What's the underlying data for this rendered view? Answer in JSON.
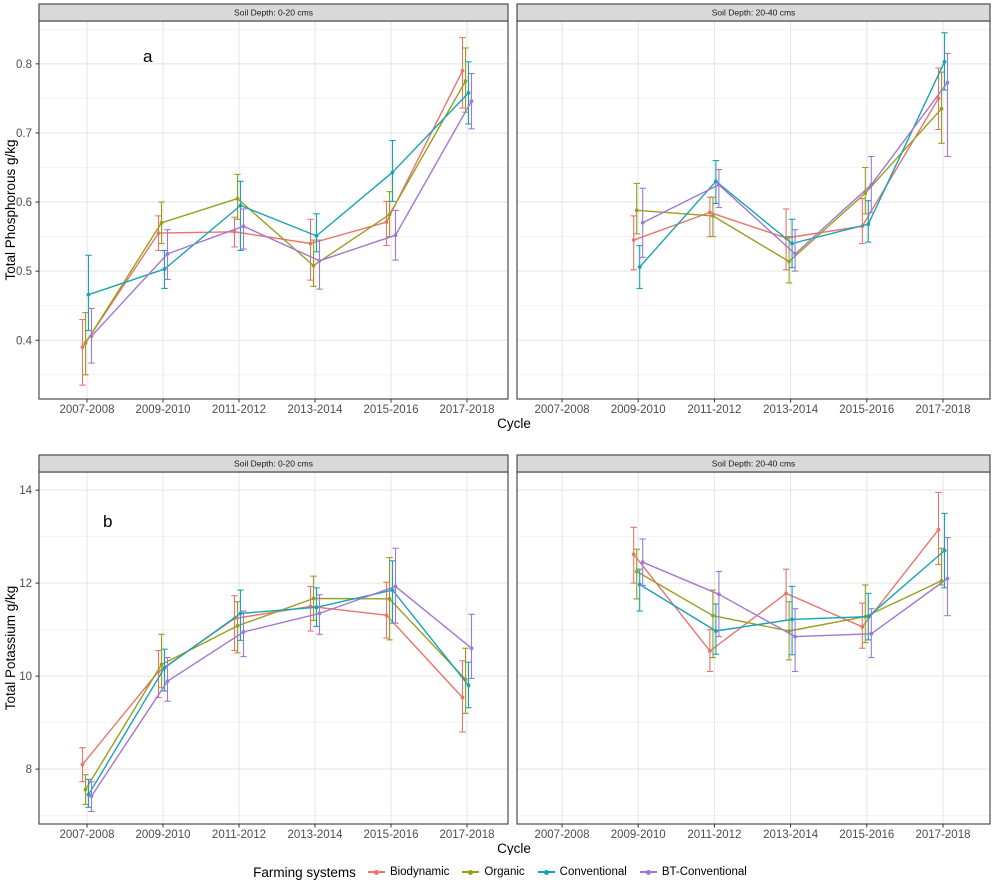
{
  "legend": {
    "title": "Farming systems",
    "items": [
      {
        "label": "Biodynamic",
        "color": "#E8746C"
      },
      {
        "label": "Organic",
        "color": "#999F1E"
      },
      {
        "label": "Conventional",
        "color": "#18A3B5"
      },
      {
        "label": "BT-Conventional",
        "color": "#A277D3"
      }
    ]
  },
  "chart_data": [
    {
      "type": "line",
      "panel_label": "a",
      "xlabel": "Cycle",
      "ylabel": "Total Phosphorous g/kg",
      "categories": [
        "2007-2008",
        "2009-2010",
        "2011-2012",
        "2013-2014",
        "2015-2016",
        "2017-2018"
      ],
      "ydomain": [
        0.315,
        0.862
      ],
      "yticks": [
        0.4,
        0.5,
        0.6,
        0.7,
        0.8
      ],
      "ytick_labels": [
        "0.4",
        "0.5",
        "0.6",
        "0.7",
        "0.8"
      ],
      "yminor": [
        0.35,
        0.45,
        0.55,
        0.65,
        0.75,
        0.85
      ],
      "facets": [
        {
          "title": "Soil Depth: 0-20 cms",
          "series": [
            {
              "name": "Biodynamic",
              "values": [
                0.39,
                0.555,
                0.557,
                0.54,
                0.571,
                0.79
              ],
              "lo": [
                0.335,
                0.53,
                0.535,
                0.487,
                0.537,
                0.736
              ],
              "hi": [
                0.43,
                0.58,
                0.578,
                0.575,
                0.601,
                0.838
              ]
            },
            {
              "name": "Organic",
              "values": [
                0.396,
                0.57,
                0.605,
                0.508,
                0.582,
                0.775
              ],
              "lo": [
                0.35,
                0.54,
                0.575,
                0.478,
                0.55,
                0.73
              ],
              "hi": [
                0.44,
                0.6,
                0.64,
                0.545,
                0.615,
                0.823
              ]
            },
            {
              "name": "Conventional",
              "values": [
                0.466,
                0.503,
                0.595,
                0.551,
                0.643,
                0.758
              ],
              "lo": [
                0.414,
                0.475,
                0.53,
                0.528,
                0.601,
                0.713
              ],
              "hi": [
                0.523,
                0.53,
                0.63,
                0.583,
                0.689,
                0.803
              ]
            },
            {
              "name": "BT-Conventional",
              "values": [
                0.406,
                0.525,
                0.565,
                0.515,
                0.552,
                0.746
              ],
              "lo": [
                0.367,
                0.488,
                0.532,
                0.474,
                0.516,
                0.706
              ],
              "hi": [
                0.446,
                0.56,
                0.59,
                0.545,
                0.588,
                0.786
              ]
            }
          ]
        },
        {
          "title": "Soil Depth: 20-40 cms",
          "series": [
            {
              "name": "Biodynamic",
              "values": [
                null,
                0.545,
                0.585,
                0.548,
                0.565,
                0.75
              ],
              "lo": [
                null,
                0.502,
                0.55,
                0.502,
                0.54,
                0.705
              ],
              "hi": [
                null,
                0.58,
                0.607,
                0.59,
                0.605,
                0.794
              ]
            },
            {
              "name": "Organic",
              "values": [
                null,
                0.588,
                0.58,
                0.514,
                0.613,
                0.735
              ],
              "lo": [
                null,
                0.554,
                0.55,
                0.483,
                0.583,
                0.685
              ],
              "hi": [
                null,
                0.627,
                0.607,
                0.55,
                0.65,
                0.788
              ]
            },
            {
              "name": "Conventional",
              "values": [
                null,
                0.506,
                0.63,
                0.54,
                0.568,
                0.803
              ],
              "lo": [
                null,
                0.475,
                0.598,
                0.505,
                0.542,
                0.762
              ],
              "hi": [
                null,
                0.537,
                0.66,
                0.575,
                0.602,
                0.845
              ]
            },
            {
              "name": "BT-Conventional",
              "values": [
                null,
                0.57,
                0.625,
                0.525,
                0.625,
                0.773
              ],
              "lo": [
                null,
                0.52,
                0.592,
                0.5,
                0.585,
                0.666
              ],
              "hi": [
                null,
                0.62,
                0.647,
                0.56,
                0.666,
                0.815
              ]
            }
          ]
        }
      ]
    },
    {
      "type": "line",
      "panel_label": "b",
      "xlabel": "Cycle",
      "ylabel": "Total Potassium g/kg",
      "categories": [
        "2007-2008",
        "2009-2010",
        "2011-2012",
        "2013-2014",
        "2015-2016",
        "2017-2018"
      ],
      "ydomain": [
        6.82,
        14.39
      ],
      "yticks": [
        8,
        10,
        12,
        14
      ],
      "ytick_labels": [
        "8",
        "10",
        "12",
        "14"
      ],
      "yminor": [
        7,
        9,
        11,
        13
      ],
      "facets": [
        {
          "title": "Soil Depth: 0-20 cms",
          "series": [
            {
              "name": "Biodynamic",
              "values": [
                8.1,
                10.1,
                11.24,
                11.5,
                11.31,
                9.54
              ],
              "lo": [
                7.73,
                9.54,
                10.55,
                10.97,
                10.82,
                8.8
              ],
              "hi": [
                8.46,
                10.55,
                11.73,
                11.93,
                12.02,
                10.33
              ]
            },
            {
              "name": "Organic",
              "values": [
                7.56,
                10.25,
                11.08,
                11.67,
                11.66,
                9.93
              ],
              "lo": [
                7.24,
                9.75,
                10.5,
                11.2,
                10.78,
                9.2
              ],
              "hi": [
                7.88,
                10.9,
                11.6,
                12.15,
                12.55,
                10.6
              ]
            },
            {
              "name": "Conventional",
              "values": [
                7.45,
                10.18,
                11.35,
                11.48,
                11.85,
                9.8
              ],
              "lo": [
                7.18,
                9.68,
                10.77,
                11.07,
                11.14,
                9.32
              ],
              "hi": [
                7.78,
                10.58,
                11.85,
                11.9,
                12.48,
                10.3
              ]
            },
            {
              "name": "BT-Conventional",
              "values": [
                7.42,
                9.89,
                10.95,
                11.35,
                11.93,
                10.6
              ],
              "lo": [
                7.09,
                9.46,
                10.42,
                10.9,
                11.14,
                9.95
              ],
              "hi": [
                7.73,
                10.4,
                11.4,
                11.75,
                12.75,
                11.33
              ]
            }
          ]
        },
        {
          "title": "Soil Depth: 20-40 cms",
          "series": [
            {
              "name": "Biodynamic",
              "values": [
                null,
                12.62,
                10.54,
                11.78,
                11.06,
                13.15
              ],
              "lo": [
                null,
                12.0,
                10.1,
                11.2,
                10.6,
                12.4
              ],
              "hi": [
                null,
                13.2,
                11.0,
                12.3,
                11.57,
                13.95
              ]
            },
            {
              "name": "Organic",
              "values": [
                null,
                12.25,
                11.3,
                10.97,
                11.28,
                12.05
              ],
              "lo": [
                null,
                11.66,
                10.4,
                10.35,
                10.72,
                11.96
              ],
              "hi": [
                null,
                12.73,
                11.85,
                11.6,
                11.96,
                12.75
              ]
            },
            {
              "name": "Conventional",
              "values": [
                null,
                11.97,
                10.97,
                11.22,
                11.28,
                12.7
              ],
              "lo": [
                null,
                11.4,
                10.47,
                10.46,
                10.78,
                11.9
              ],
              "hi": [
                null,
                12.3,
                11.55,
                11.93,
                11.78,
                13.5
              ]
            },
            {
              "name": "BT-Conventional",
              "values": [
                null,
                12.45,
                11.76,
                10.85,
                10.91,
                12.1
              ],
              "lo": [
                null,
                11.95,
                10.85,
                10.1,
                10.4,
                11.3
              ],
              "hi": [
                null,
                12.95,
                12.25,
                11.45,
                11.45,
                12.98
              ]
            }
          ]
        }
      ]
    }
  ]
}
